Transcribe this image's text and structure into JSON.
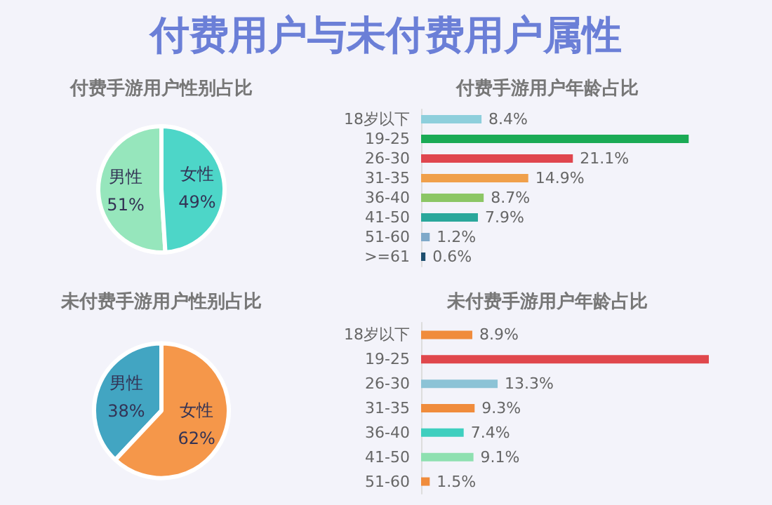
{
  "chart_data": [
    {
      "type": "other",
      "title": "付费用户与未付费用户属性"
    },
    {
      "type": "pie",
      "title": "付费手游用户性别占比",
      "categories": [
        "男性",
        "女性"
      ],
      "values": [
        51,
        49
      ],
      "colors": [
        "#96e6bc",
        "#4dd6c8"
      ],
      "value_labels": [
        "51%",
        "49%"
      ]
    },
    {
      "type": "bar",
      "orientation": "horizontal",
      "title": "付费手游用户年龄占比",
      "categories": [
        "18岁以下",
        "19-25",
        "26-30",
        "31-35",
        "36-40",
        "41-50",
        "51-60",
        ">=61"
      ],
      "values": [
        8.4,
        37.2,
        21.1,
        14.9,
        8.7,
        7.9,
        1.2,
        0.6
      ],
      "colors": [
        "#8ecfdc",
        "#1aaa55",
        "#e0464e",
        "#f0a04b",
        "#8cc665",
        "#2aa79b",
        "#7fa9c9",
        "#1d4e6e"
      ],
      "value_labels": [
        "8.4%",
        null,
        "21.1%",
        "14.9%",
        "8.7%",
        "7.9%",
        "1.2%",
        "0.6%"
      ]
    },
    {
      "type": "pie",
      "title": "未付费手游用户性别占比",
      "categories": [
        "男性",
        "女性"
      ],
      "values": [
        38,
        62
      ],
      "colors": [
        "#42a5c2",
        "#f5974a"
      ],
      "value_labels": [
        "38%",
        "62%"
      ]
    },
    {
      "type": "bar",
      "orientation": "horizontal",
      "title": "未付费手游用户年龄占比",
      "categories": [
        "18岁以下",
        "19-25",
        "26-30",
        "31-35",
        "36-40",
        "41-50",
        "51-60"
      ],
      "values": [
        8.9,
        50,
        13.3,
        9.3,
        7.4,
        9.1,
        1.5
      ],
      "colors": [
        "#f08c3c",
        "#e0474c",
        "#8cc3d6",
        "#f08c3c",
        "#3fcfbf",
        "#8ee0b0",
        "#f08c3c"
      ],
      "value_labels": [
        "8.9%",
        null,
        "13.3%",
        "9.3%",
        "7.4%",
        "9.1%",
        "1.5%"
      ]
    }
  ]
}
